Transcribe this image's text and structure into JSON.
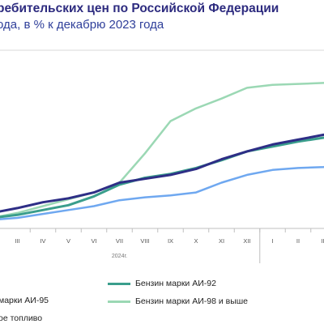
{
  "header": {
    "title": "ребительских цен по Российской Федерации",
    "subtitle": "ода, в % к декабрю 2023 года"
  },
  "chart_data": {
    "type": "line",
    "title": "ребительских цен по Российской Федерации",
    "subtitle": "ода, в % к декабрю 2023 года",
    "x": [
      "II",
      "III",
      "IV",
      "V",
      "VI",
      "VII",
      "VIII",
      "IX",
      "X",
      "XI",
      "XII",
      "I",
      "II",
      "III",
      "IV",
      "V",
      "VI",
      "VII"
    ],
    "year_labels": [
      "2024г.",
      "2025"
    ],
    "ylim": [
      99.5,
      114
    ],
    "grid": false,
    "series": [
      {
        "name": "Бензин марки АИ-92",
        "color": "#3a9e8c",
        "values": [
          100.0,
          100.3,
          100.8,
          101.3,
          102.2,
          103.4,
          104.1,
          104.5,
          105.1,
          105.9,
          106.8,
          107.3,
          107.8,
          108.2,
          108.6,
          109.0,
          109.3,
          109.5
        ]
      },
      {
        "name": "Бензин марки АИ-95",
        "color": "#2e2e86",
        "values": [
          100.5,
          101.0,
          101.6,
          102.0,
          102.6,
          103.6,
          104.0,
          104.4,
          105.0,
          106.0,
          106.8,
          107.5,
          108.0,
          108.5,
          108.9,
          109.2,
          109.4,
          109.6
        ]
      },
      {
        "name": "Бензин марки АИ-98 и выше",
        "color": "#9bd8b4",
        "values": [
          100.0,
          100.5,
          101.2,
          101.9,
          102.6,
          103.6,
          106.6,
          109.9,
          111.2,
          112.2,
          113.3,
          113.6,
          113.7,
          113.8,
          113.9,
          114.0,
          114.2,
          114.3
        ]
      },
      {
        "name": "ое топливо",
        "color": "#6fa8f0",
        "values": [
          99.8,
          100.0,
          100.4,
          100.8,
          101.2,
          101.8,
          102.1,
          102.3,
          102.6,
          103.6,
          104.4,
          104.9,
          105.1,
          105.2,
          105.4,
          105.5,
          105.6,
          105.7
        ]
      }
    ]
  },
  "legend": {
    "ai92": "Бензин марки АИ-92",
    "ai95": "марки АИ-95",
    "ai98": "Бензин марки АИ-98 и выше",
    "diesel": "ое топливо"
  }
}
